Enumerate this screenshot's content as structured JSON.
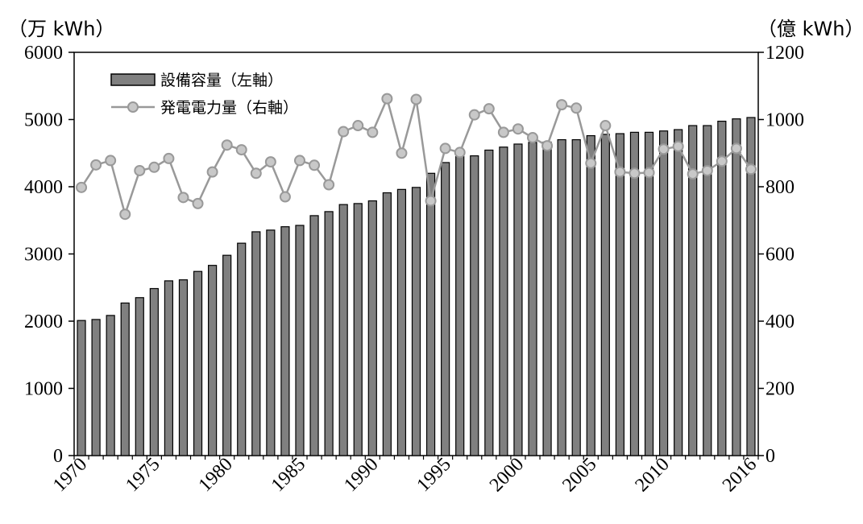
{
  "chart_data": {
    "type": "bar+line",
    "left_unit": "（万 kWh）",
    "right_unit": "（億 kWh）",
    "ylim_left": [
      0,
      6000
    ],
    "ylim_right": [
      0,
      1200
    ],
    "yticks_left": [
      "0",
      "1000",
      "2000",
      "3000",
      "4000",
      "5000",
      "6000"
    ],
    "yticks_right": [
      "0",
      "200",
      "400",
      "600",
      "800",
      "1000",
      "1200"
    ],
    "x": [
      1970,
      1971,
      1972,
      1973,
      1974,
      1975,
      1976,
      1977,
      1978,
      1979,
      1980,
      1981,
      1982,
      1983,
      1984,
      1985,
      1986,
      1987,
      1988,
      1989,
      1990,
      1991,
      1992,
      1993,
      1994,
      1995,
      1996,
      1997,
      1998,
      1999,
      2000,
      2001,
      2002,
      2003,
      2004,
      2005,
      2006,
      2007,
      2008,
      2009,
      2010,
      2011,
      2012,
      2013,
      2014,
      2015,
      2016
    ],
    "xtick_labels": [
      "1970",
      "1975",
      "1980",
      "1985",
      "1990",
      "1995",
      "2000",
      "2005",
      "2010",
      "2016"
    ],
    "series": [
      {
        "name": "設備容量（左軸）",
        "type": "bar",
        "axis": "left",
        "color": "#808080",
        "values": [
          2010,
          2025,
          2085,
          2270,
          2350,
          2485,
          2600,
          2615,
          2740,
          2830,
          2980,
          3160,
          3330,
          3355,
          3405,
          3425,
          3570,
          3630,
          3735,
          3750,
          3790,
          3910,
          3960,
          3990,
          4200,
          4360,
          4450,
          4460,
          4545,
          4590,
          4635,
          4660,
          4665,
          4700,
          4700,
          4760,
          4780,
          4790,
          4810,
          4810,
          4830,
          4850,
          4910,
          4910,
          4975,
          5010,
          5030
        ]
      },
      {
        "name": "発電電力量（右軸）",
        "type": "line",
        "axis": "right",
        "color": "#999999",
        "marker_fill": "#c8c8c8",
        "values": [
          798,
          865,
          878,
          718,
          848,
          858,
          884,
          768,
          750,
          844,
          924,
          910,
          840,
          874,
          770,
          878,
          864,
          806,
          964,
          982,
          962,
          1062,
          900,
          1060,
          758,
          914,
          902,
          1014,
          1032,
          962,
          972,
          946,
          922,
          1044,
          1034,
          870,
          982,
          844,
          840,
          842,
          912,
          920,
          838,
          848,
          876,
          914,
          852
        ]
      }
    ]
  }
}
